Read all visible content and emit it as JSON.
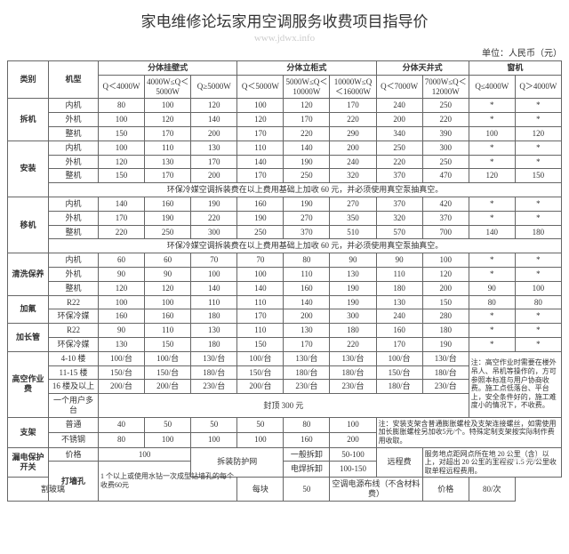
{
  "title": "家电维修论坛家用空调服务收费项目指导价",
  "watermark": "www.jdwx.info",
  "unit": "单位：人民币（元）",
  "colors": {
    "border": "#666666",
    "text": "#333333",
    "bg": "#ffffff",
    "wm": "#cccccc"
  },
  "header": {
    "cat": "类别",
    "model": "机型",
    "groups": [
      {
        "label": "分体挂壁式",
        "cols": [
          "Q＜4000W",
          "4000W≤Q＜5000W",
          "Q≥5000W"
        ]
      },
      {
        "label": "分体立柜式",
        "cols": [
          "Q＜5000W",
          "5000W≤Q＜10000W",
          "10000W≤Q＜16000W"
        ]
      },
      {
        "label": "分体天井式",
        "cols": [
          "Q＜7000W",
          "7000W≤Q＜12000W"
        ]
      },
      {
        "label": "窗机",
        "cols": [
          "Q≤4000W",
          "Q＞4000W"
        ]
      }
    ]
  },
  "sections": {
    "chaiji": {
      "label": "拆机",
      "rows": [
        {
          "m": "内机",
          "v": [
            "80",
            "100",
            "120",
            "100",
            "120",
            "170",
            "240",
            "250",
            "*",
            "*"
          ]
        },
        {
          "m": "外机",
          "v": [
            "100",
            "120",
            "140",
            "120",
            "170",
            "220",
            "200",
            "220",
            "*",
            "*"
          ]
        },
        {
          "m": "整机",
          "v": [
            "150",
            "170",
            "200",
            "170",
            "220",
            "290",
            "340",
            "390",
            "100",
            "120"
          ]
        }
      ]
    },
    "anzhuang": {
      "label": "安装",
      "rows": [
        {
          "m": "内机",
          "v": [
            "100",
            "110",
            "130",
            "110",
            "140",
            "200",
            "250",
            "300",
            "*",
            "*"
          ]
        },
        {
          "m": "外机",
          "v": [
            "120",
            "130",
            "170",
            "140",
            "190",
            "240",
            "220",
            "250",
            "*",
            "*"
          ]
        },
        {
          "m": "整机",
          "v": [
            "150",
            "170",
            "200",
            "170",
            "250",
            "320",
            "370",
            "470",
            "120",
            "150"
          ]
        }
      ],
      "note": "环保冷媒空调拆装费在以上费用基础上加收 60 元，并必须使用真空泵抽真空。"
    },
    "yiji": {
      "label": "移机",
      "rows": [
        {
          "m": "内机",
          "v": [
            "140",
            "160",
            "190",
            "160",
            "190",
            "270",
            "370",
            "420",
            "*",
            "*"
          ]
        },
        {
          "m": "外机",
          "v": [
            "170",
            "190",
            "220",
            "190",
            "270",
            "350",
            "320",
            "370",
            "*",
            "*"
          ]
        },
        {
          "m": "整机",
          "v": [
            "220",
            "250",
            "300",
            "250",
            "370",
            "510",
            "570",
            "700",
            "140",
            "180"
          ]
        }
      ],
      "note": "环保冷媒空调拆装费在以上费用基础上加收 60 元，并必须使用真空泵抽真空。"
    },
    "qingxi": {
      "label": "清洗保养",
      "rows": [
        {
          "m": "内机",
          "v": [
            "60",
            "60",
            "70",
            "70",
            "80",
            "90",
            "90",
            "100",
            "*",
            "*"
          ]
        },
        {
          "m": "外机",
          "v": [
            "90",
            "90",
            "100",
            "100",
            "110",
            "130",
            "110",
            "120",
            "*",
            "*"
          ]
        },
        {
          "m": "整机",
          "v": [
            "120",
            "120",
            "140",
            "140",
            "160",
            "190",
            "180",
            "200",
            "90",
            "100"
          ]
        }
      ]
    },
    "jiafu": {
      "label": "加氟",
      "rows": [
        {
          "m": "R22",
          "v": [
            "100",
            "100",
            "110",
            "110",
            "140",
            "190",
            "130",
            "150",
            "80",
            "80"
          ]
        },
        {
          "m": "环保冷媒",
          "v": [
            "160",
            "160",
            "180",
            "170",
            "200",
            "300",
            "240",
            "280",
            "*",
            "*"
          ]
        }
      ]
    },
    "jiachang": {
      "label": "加长管",
      "rows": [
        {
          "m": "R22",
          "v": [
            "90",
            "110",
            "130",
            "110",
            "130",
            "180",
            "160",
            "180",
            "*",
            "*"
          ]
        },
        {
          "m": "环保冷媒",
          "v": [
            "130",
            "150",
            "180",
            "150",
            "170",
            "220",
            "170",
            "190",
            "*",
            "*"
          ]
        }
      ]
    }
  },
  "gaokong": {
    "label": "高空作业费",
    "rows": [
      {
        "m": "4-10 楼",
        "v": [
          "100/台",
          "100/台",
          "130/台",
          "100/台",
          "130/台",
          "130/台",
          "100/台",
          "130/台"
        ]
      },
      {
        "m": "11-15 楼",
        "v": [
          "150/台",
          "150/台",
          "180/台",
          "150/台",
          "180/台",
          "180/台",
          "150/台",
          "180/台"
        ]
      },
      {
        "m": "16 楼及以上",
        "v": [
          "200/台",
          "200/台",
          "230/台",
          "200/台",
          "230/台",
          "230/台",
          "180/台",
          "230/台"
        ]
      }
    ],
    "cap_label": "一个用户多台",
    "cap": "封顶 300 元",
    "note": "注：高空作业时需要在楼外吊人、吊机等操作的，方可参照本标准与用户协商收费。施工点低落台、平台上，安全条件好的，施工难度小的情况下，不收费。"
  },
  "zhijia": {
    "label": "支架",
    "rows": [
      {
        "m": "普通",
        "v": [
          "40",
          "50",
          "50",
          "50",
          "80",
          "100"
        ]
      },
      {
        "m": "不锈钢",
        "v": [
          "80",
          "100",
          "100",
          "100",
          "160",
          "200"
        ]
      }
    ],
    "note": "注：安装支架含普通膨胀螺栓及支架连接螺丝，如需使用加长膨胀螺栓另加收5元/个。特殊定制支架按实际制作费用收取。"
  },
  "bottom": {
    "loudian": {
      "label": "漏电保护开关",
      "price_label": "价格",
      "price": "100"
    },
    "fanghu": {
      "label": "拆装防护网",
      "r1l": "一般拆卸",
      "r1v": "50-100",
      "r2l": "电焊拆卸",
      "r2v": "100-150"
    },
    "yuancheng": {
      "label": "远程费",
      "note": "服务地点距网点所在地 20 公里（含）以上，对超出 20 公里的里程按 1.5 元/公里收取单程远程费用。"
    },
    "daqiang": {
      "label": "打墙孔",
      "note": "1 个以上或使用水钻一次成型钻墙孔的每个收费60元"
    },
    "geboli": {
      "label": "割玻璃",
      "unit": "每块",
      "price": "50"
    },
    "buxian": {
      "label": "空调电源布线（不含材料费）",
      "price_l": "价格",
      "price": "80/次"
    }
  }
}
